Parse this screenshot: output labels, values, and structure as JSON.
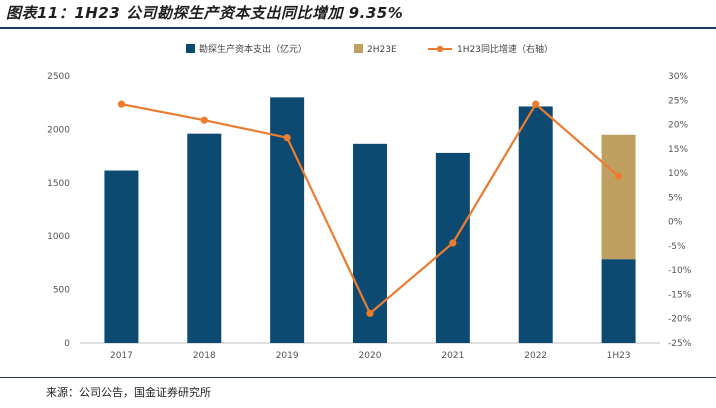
{
  "title": "图表11：1H23 公司勘探生产资本支出同比增加 9.35%",
  "source": "来源：公司公告，国金证券研究所",
  "colors": {
    "bar": "#0d4a72",
    "estimate": "#c0a060",
    "line": "#ec7c30",
    "rule": "#1a3a5c"
  },
  "chart_data": {
    "type": "bar",
    "categories": [
      "2017",
      "2018",
      "2019",
      "2020",
      "2021",
      "2022",
      "1H23"
    ],
    "series": [
      {
        "name": "勘探生产资本支出（亿元）",
        "type": "bar",
        "axis": "left",
        "values": [
          1615,
          1960,
          2300,
          1865,
          1780,
          2215,
          785
        ]
      },
      {
        "name": "2H23E",
        "type": "bar",
        "axis": "left",
        "stacked": true,
        "values": [
          null,
          null,
          null,
          null,
          null,
          null,
          1165
        ]
      },
      {
        "name": "1H23同比增速（右轴）",
        "type": "line",
        "axis": "right",
        "values": [
          24.2,
          20.9,
          17.3,
          -18.9,
          -4.4,
          24.2,
          9.35
        ]
      }
    ],
    "ylim_left": [
      0,
      2500
    ],
    "yticks_left": [
      "0",
      "500",
      "1000",
      "1500",
      "2000",
      "2500"
    ],
    "ylim_right": [
      -25,
      30
    ],
    "yticks_right": [
      "-25%",
      "-20%",
      "-15%",
      "-10%",
      "-5%",
      "0%",
      "5%",
      "10%",
      "15%",
      "20%",
      "25%",
      "30%"
    ],
    "legend_position": "top",
    "grid": false
  }
}
